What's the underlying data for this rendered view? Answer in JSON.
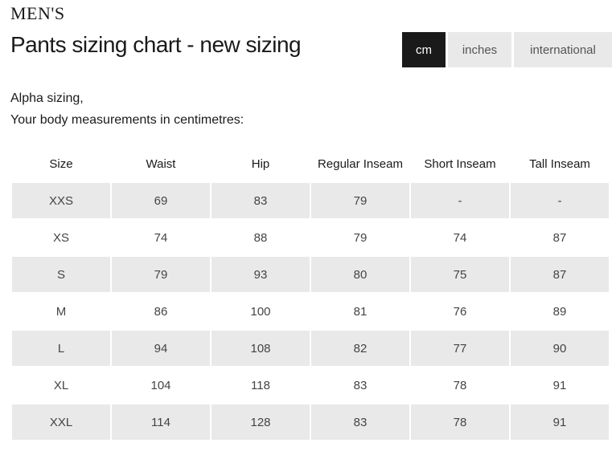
{
  "category": "MEN'S",
  "title": "Pants sizing chart - new sizing",
  "unit_tabs": [
    {
      "label": "cm",
      "active": true
    },
    {
      "label": "inches",
      "active": false
    },
    {
      "label": "international",
      "active": false
    }
  ],
  "subtitle_line1": "Alpha sizing,",
  "subtitle_line2": "Your body measurements in centimetres:",
  "table": {
    "headers": [
      "Size",
      "Waist",
      "Hip",
      "Regular Inseam",
      "Short Inseam",
      "Tall Inseam"
    ],
    "rows": [
      [
        "XXS",
        "69",
        "83",
        "79",
        "-",
        "-"
      ],
      [
        "XS",
        "74",
        "88",
        "79",
        "74",
        "87"
      ],
      [
        "S",
        "79",
        "93",
        "80",
        "75",
        "87"
      ],
      [
        "M",
        "86",
        "100",
        "81",
        "76",
        "89"
      ],
      [
        "L",
        "94",
        "108",
        "82",
        "77",
        "90"
      ],
      [
        "XL",
        "104",
        "118",
        "83",
        "78",
        "91"
      ],
      [
        "XXL",
        "114",
        "128",
        "83",
        "78",
        "91"
      ]
    ]
  },
  "colors": {
    "active_tab": "#1a1a1a",
    "shaded_row": "#e9e9e9"
  }
}
